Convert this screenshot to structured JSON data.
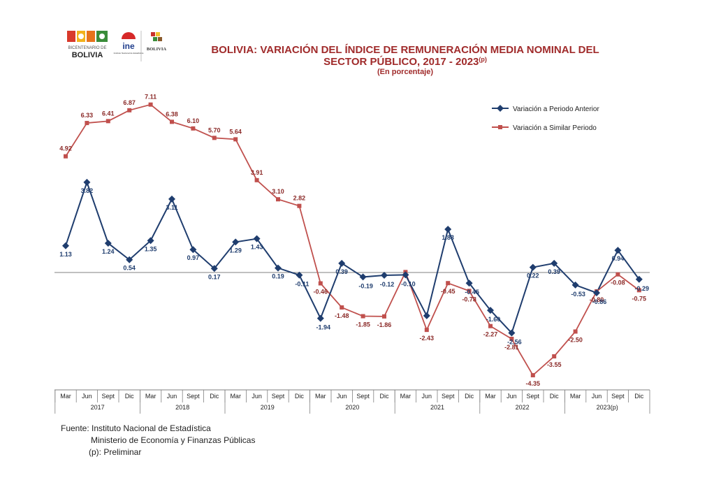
{
  "logos": {
    "bicentenario_top": "BICENTENARIO DE",
    "bicentenario_bottom": "BOLIVIA",
    "ine_word": "ine",
    "ine_sub": "Instituto Nacional de Estadística",
    "ministry": "BOLIVIA"
  },
  "colors": {
    "series1": "#1F3D6E",
    "series2": "#C0504D",
    "title": "#A02B2B",
    "axis": "#808080"
  },
  "chart_data": {
    "type": "line",
    "title_line1": "BOLIVIA: VARIACIÓN DEL ÍNDICE DE REMUNERACIÓN MEDIA NOMINAL DEL",
    "title_line2": "SECTOR PÚBLICO,  2017 - 2023",
    "title_sup": "(p)",
    "subtitle": "(En porcentaje)",
    "categories": [
      "Mar",
      "Jun",
      "Sept",
      "Dic",
      "Mar",
      "Jun",
      "Sept",
      "Dic",
      "Mar",
      "Jun",
      "Sept",
      "Dic",
      "Mar",
      "Jun",
      "Sept",
      "Dic",
      "Mar",
      "Jun",
      "Sept",
      "Dic",
      "Mar",
      "Jun",
      "Sept",
      "Dic",
      "Mar",
      "Jun",
      "Sept",
      "Dic"
    ],
    "years": [
      "2017",
      "2018",
      "2019",
      "2020",
      "2021",
      "2022",
      "2023(p)"
    ],
    "series": [
      {
        "name": "Variación a Periodo Anterior",
        "marker": "diamond",
        "values": [
          1.13,
          3.82,
          1.24,
          0.54,
          1.35,
          3.11,
          0.97,
          0.17,
          1.29,
          1.43,
          0.19,
          -0.11,
          -1.94,
          0.39,
          -0.19,
          -0.12,
          -0.1,
          -1.83,
          1.83,
          -0.45,
          -1.6,
          -2.56,
          0.22,
          0.39,
          -0.53,
          -0.86,
          0.94,
          -0.29
        ],
        "labels": [
          "1.13",
          "3.82",
          "1.24",
          "0.54",
          "1.35",
          "3.11",
          "0.97",
          "0.17",
          "1.29",
          "1.43",
          "0.19",
          "-0.11",
          "-1.94",
          "0.39",
          "-0.19",
          "-0.12",
          "-0.10",
          "",
          "1.83",
          "-0.45",
          "-1.60",
          "-2.56",
          "0.22",
          "0.39",
          "-0.53",
          "-0.86",
          "0.94",
          "-0.29"
        ]
      },
      {
        "name": "Variación a Similar Periodo",
        "marker": "square",
        "values": [
          4.92,
          6.33,
          6.41,
          6.87,
          7.11,
          6.38,
          6.1,
          5.7,
          5.64,
          3.91,
          3.1,
          2.82,
          -0.46,
          -1.48,
          -1.85,
          -1.86,
          0.02,
          -2.43,
          -0.45,
          -0.78,
          -2.27,
          -2.81,
          -4.35,
          -3.55,
          -2.5,
          -0.8,
          -0.08,
          -0.75
        ],
        "labels": [
          "4.92",
          "6.33",
          "6.41",
          "6.87",
          "7.11",
          "6.38",
          "6.10",
          "5.70",
          "5.64",
          "3.91",
          "3.10",
          "2.82",
          "-0.46",
          "-1.48",
          "-1.85",
          "-1.86",
          "",
          "-2.43",
          "-0.45",
          "-0.78",
          "-2.27",
          "-2.81",
          "-4.35",
          "-3.55",
          "-2.50",
          "-0.80",
          "-0.08",
          "-0.75"
        ]
      }
    ],
    "legend_position": "top-right",
    "grid": false
  },
  "footer": {
    "source_line1": "Fuente: Instituto Nacional de Estadística",
    "source_line2": "Ministerio de Economía y Finanzas Públicas",
    "note": "(p): Preliminar"
  }
}
